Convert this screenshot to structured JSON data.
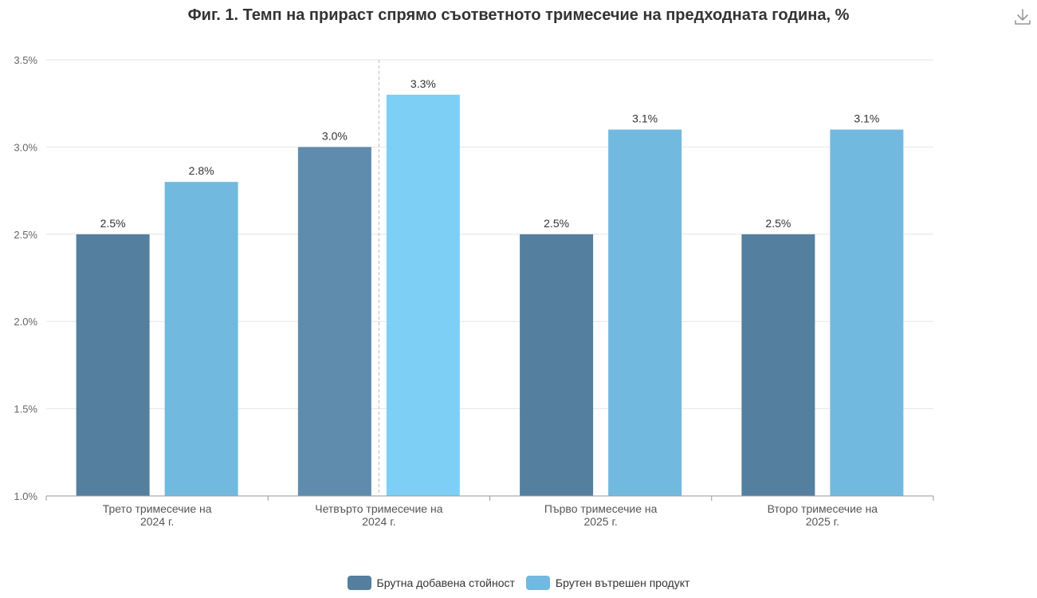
{
  "chart_data": {
    "type": "bar",
    "title": "Фиг. 1. Темп на прираст спрямо съответното тримесечие на предходната година, %",
    "categories": [
      [
        "Трето тримесечие на",
        "2024 г."
      ],
      [
        "Четвърто тримесечие на",
        "2024 г."
      ],
      [
        "Първо тримесечие на",
        "2025 г."
      ],
      [
        "Второ тримесечие на",
        "2025 г."
      ]
    ],
    "series": [
      {
        "name": "Брутна добавена стойност",
        "values": [
          2.5,
          3.0,
          2.5,
          2.5
        ],
        "labels": [
          "2.5%",
          "3.0%",
          "2.5%",
          "2.5%"
        ],
        "color": "#547f9f"
      },
      {
        "name": "Брутен вътрешен продукт",
        "values": [
          2.8,
          3.3,
          3.1,
          3.1
        ],
        "labels": [
          "2.8%",
          "3.3%",
          "3.1%",
          "3.1%"
        ],
        "color": "#72b9df"
      }
    ],
    "highlight": {
      "category_index": 1,
      "colors": [
        "#5f8cad",
        "#7ecff5"
      ]
    },
    "ylim": [
      1.0,
      3.5
    ],
    "yticks": [
      1.0,
      1.5,
      2.0,
      2.5,
      3.0,
      3.5
    ],
    "ytick_labels": [
      "1.0%",
      "1.5%",
      "2.0%",
      "2.5%",
      "3.0%",
      "3.5%"
    ],
    "xlabel": "",
    "ylabel": "",
    "grid": true,
    "legend_position": "bottom-center"
  },
  "toolbar": {
    "download_icon": "download-icon"
  }
}
